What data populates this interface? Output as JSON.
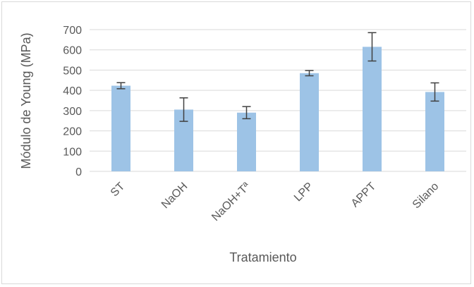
{
  "chart_data": {
    "type": "bar",
    "title": "",
    "xlabel": "Tratamiento",
    "ylabel": "Módulo de Young (MPa)",
    "categories": [
      "ST",
      "NaOH",
      "NaOH+Tª",
      "LPP",
      "APPT",
      "Silano"
    ],
    "series": [
      {
        "values": [
          423,
          305,
          290,
          485,
          615,
          392
        ],
        "error": [
          15,
          58,
          30,
          13,
          70,
          45
        ]
      }
    ],
    "ylim": [
      0,
      700
    ],
    "yticks": [
      0,
      100,
      200,
      300,
      400,
      500,
      600,
      700
    ],
    "grid": true,
    "legend": "none",
    "colors": {
      "bar": "#9dc3e6",
      "gridline": "#d9d9d9",
      "errorbar": "#404040",
      "text": "#595959"
    }
  }
}
